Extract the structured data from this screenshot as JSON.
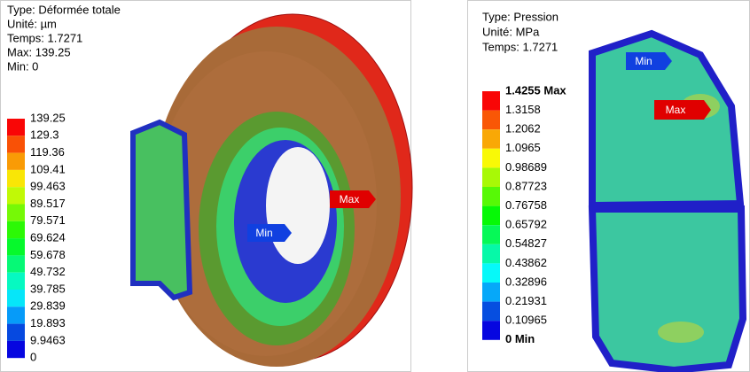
{
  "left_panel": {
    "lines": [
      "Type: Déformée totale",
      "Unité: µm",
      "Temps: 1.7271",
      "Max: 139.25",
      "Min: 0"
    ],
    "legend": [
      "139.25",
      "129.3",
      "119.36",
      "109.41",
      "99.463",
      "89.517",
      "79.571",
      "69.624",
      "59.678",
      "49.732",
      "39.785",
      "29.839",
      "19.893",
      "9.9463",
      "0"
    ],
    "max_tag": "Max",
    "min_tag": "Min"
  },
  "right_panel": {
    "lines": [
      "Type: Pression",
      "Unité: MPa",
      "Temps: 1.7271"
    ],
    "legend": [
      "1.4255 Max",
      "1.3158",
      "1.2062",
      "1.0965",
      "0.98689",
      "0.87723",
      "0.76758",
      "0.65792",
      "0.54827",
      "0.43862",
      "0.32896",
      "0.21931",
      "0.10965",
      "0 Min"
    ],
    "max_tag": "Max",
    "min_tag": "Min"
  }
}
